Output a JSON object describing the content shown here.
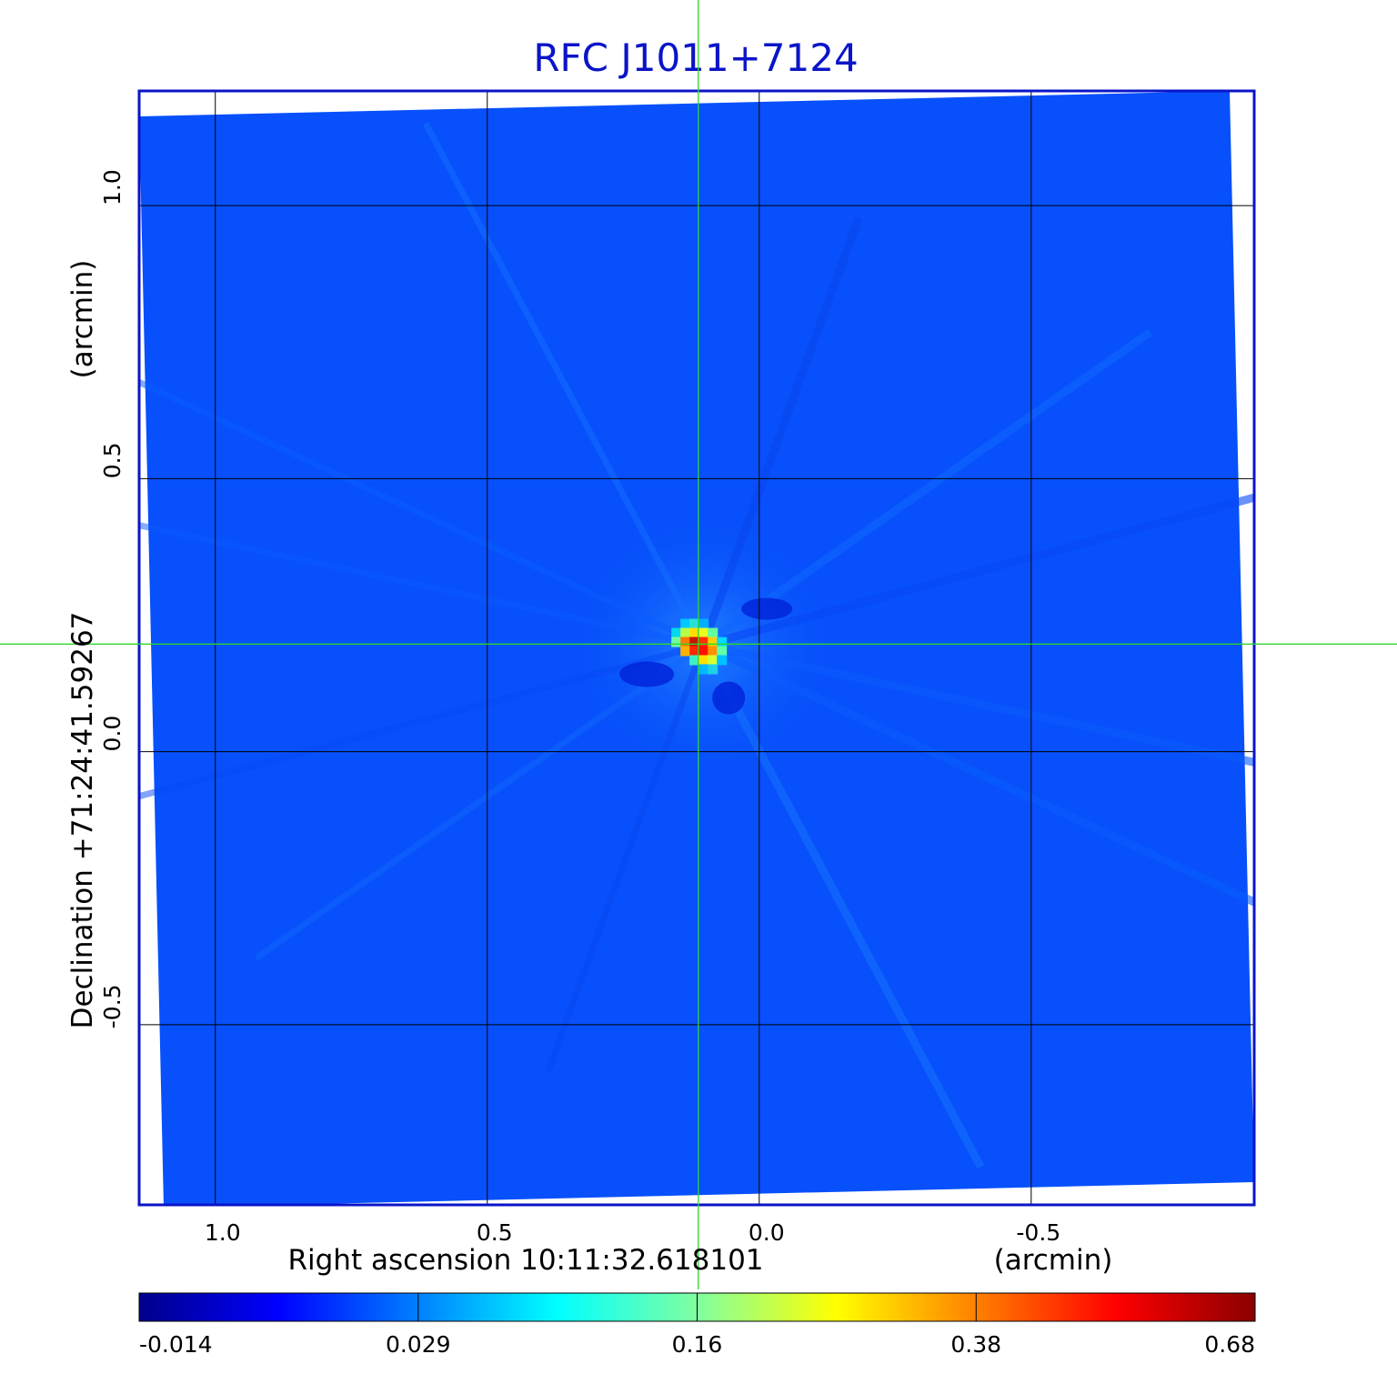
{
  "chart_data": {
    "type": "heatmap",
    "title": "RFC J1011+7124",
    "xlabel": "Right ascension  10:11:32.618101",
    "xunit": "(arcmin)",
    "ylabel": "Declination  +71:24:41.59267",
    "yunit": "(arcmin)",
    "x_ticks": [
      "1.0",
      "0.5",
      "0.0",
      "-0.5"
    ],
    "x_tick_values": [
      1.0,
      0.5,
      0.0,
      -0.5
    ],
    "y_ticks": [
      "1.0",
      "0.5",
      "0.0",
      "-0.5"
    ],
    "y_tick_values": [
      1.0,
      0.5,
      0.0,
      -0.5
    ],
    "xlim": [
      1.14,
      -0.91
    ],
    "ylim": [
      -0.83,
      1.21
    ],
    "grid": true,
    "crosshair": {
      "x": 0.112,
      "y": 0.197
    },
    "source_peak": {
      "x": 0.103,
      "y": 0.195,
      "value": 0.68
    },
    "colorbar": {
      "position": "bottom",
      "labels": [
        "-0.014",
        "0.029",
        "0.16",
        "0.38",
        "0.68"
      ],
      "stops": [
        -0.014,
        0.029,
        0.16,
        0.38,
        0.68
      ],
      "colors": [
        "#00008b",
        "#0000ff",
        "#0080ff",
        "#00ffff",
        "#80ffa0",
        "#ffff00",
        "#ff8000",
        "#ff0000",
        "#8b0000"
      ]
    },
    "colors": {
      "title": "#0a14c8",
      "frame": "#0a14c8",
      "background_field": "#0750fb",
      "crosshair": "#2dd62d",
      "grid": "#000000"
    }
  }
}
